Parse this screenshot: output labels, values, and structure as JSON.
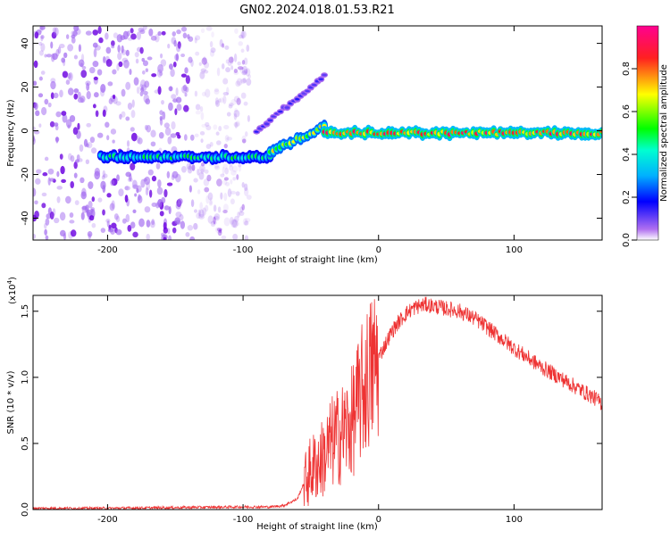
{
  "figure": {
    "title": "GN02.2024.018.01.53.R21"
  },
  "chart_data": [
    {
      "type": "heatmap",
      "xlabel": "Height of straight line (km)",
      "ylabel": "Frequency (Hz)",
      "xlim": [
        -255,
        165
      ],
      "ylim": [
        -50,
        48
      ],
      "xticks": [
        -200,
        -100,
        0,
        100
      ],
      "yticks": [
        -40,
        -20,
        0,
        20,
        40
      ],
      "colorbar": {
        "label": "Normalized spectral amplitude",
        "range": [
          0,
          1
        ],
        "ticks": [
          "0.0",
          "0.2",
          "0.4",
          "0.6",
          "0.8"
        ],
        "colors": [
          "#ffffff",
          "#7a00e6",
          "#0000ff",
          "#00e6ff",
          "#00ff40",
          "#ffff00",
          "#ff2020",
          "#ff00a0"
        ]
      },
      "features": [
        {
          "x": [
            -205,
            -80
          ],
          "y": -12,
          "amplitude": 0.5
        },
        {
          "x": [
            -80,
            -40
          ],
          "y": [
            -10,
            2
          ],
          "amplitude": 0.7
        },
        {
          "x": [
            -40,
            165
          ],
          "y": -1,
          "amplitude": 0.9
        },
        {
          "x": [
            -90,
            -40
          ],
          "y": [
            0,
            25
          ],
          "amplitude": 0.15
        }
      ],
      "noise_region": {
        "x": [
          -255,
          -95
        ],
        "y": [
          -50,
          48
        ],
        "amplitude": 0.1
      }
    },
    {
      "type": "line",
      "xlabel": "Height of straight line (km)",
      "ylabel": "SNR (10 * v/v)",
      "yscale_label": "(x10",
      "yscale_exp": "4",
      "yscale_close": ")",
      "xlim": [
        -255,
        165
      ],
      "ylim": [
        0,
        1.62
      ],
      "xticks": [
        -200,
        -100,
        0,
        100
      ],
      "yticks": [
        "0.0",
        "0.5",
        "1.0",
        "1.5"
      ],
      "color": "#ee3333",
      "series": [
        {
          "x": [
            -255,
            -200,
            -150,
            -100,
            -80,
            -70,
            -60,
            -55,
            -50,
            -45,
            -40,
            -35,
            -30,
            -25,
            -20,
            -15,
            -10,
            -5,
            0,
            5,
            10,
            15,
            20,
            25,
            30,
            35,
            40,
            50,
            60,
            70,
            80,
            90,
            100,
            110,
            120,
            130,
            140,
            150,
            160,
            165
          ],
          "y": [
            0.01,
            0.01,
            0.015,
            0.02,
            0.02,
            0.03,
            0.08,
            0.2,
            0.3,
            0.35,
            0.4,
            0.5,
            0.55,
            0.6,
            0.65,
            0.8,
            0.95,
            1.05,
            1.15,
            1.25,
            1.35,
            1.42,
            1.48,
            1.52,
            1.54,
            1.55,
            1.54,
            1.52,
            1.5,
            1.45,
            1.38,
            1.3,
            1.22,
            1.15,
            1.08,
            1.02,
            0.96,
            0.9,
            0.84,
            0.8
          ]
        }
      ]
    }
  ]
}
